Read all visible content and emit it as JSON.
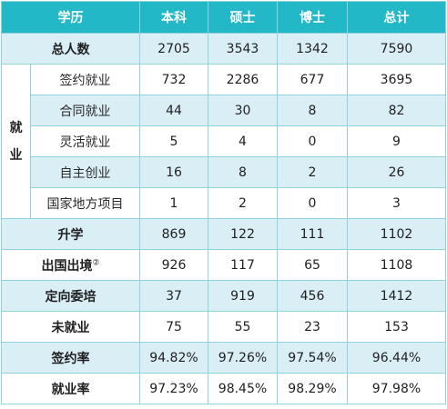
{
  "table": {
    "headers": [
      "学历",
      "本科",
      "硕士",
      "博士",
      "总计"
    ],
    "total_row": {
      "label": "总人数",
      "values": [
        "2705",
        "3543",
        "1342",
        "7590"
      ]
    },
    "employment_group_label": [
      "就",
      "业"
    ],
    "employment_rows": [
      {
        "label": "签约就业",
        "values": [
          "732",
          "2286",
          "677",
          "3695"
        ]
      },
      {
        "label": "合同就业",
        "values": [
          "44",
          "30",
          "8",
          "82"
        ]
      },
      {
        "label": "灵活就业",
        "values": [
          "5",
          "4",
          "0",
          "9"
        ]
      },
      {
        "label": "自主创业",
        "values": [
          "16",
          "8",
          "2",
          "26"
        ]
      },
      {
        "label": "国家地方项目",
        "values": [
          "1",
          "2",
          "0",
          "3"
        ]
      }
    ],
    "other_rows": [
      {
        "label": "升学",
        "values": [
          "869",
          "122",
          "111",
          "1102"
        ]
      },
      {
        "label": "出国出境",
        "note": "②",
        "values": [
          "926",
          "117",
          "65",
          "1108"
        ]
      },
      {
        "label": "定向委培",
        "values": [
          "37",
          "919",
          "456",
          "1412"
        ]
      },
      {
        "label": "未就业",
        "values": [
          "75",
          "55",
          "23",
          "153"
        ]
      },
      {
        "label": "签约率",
        "values": [
          "94.82%",
          "97.26%",
          "97.54%",
          "96.44%"
        ]
      },
      {
        "label": "就业率",
        "values": [
          "97.23%",
          "98.45%",
          "98.29%",
          "97.98%"
        ]
      }
    ]
  },
  "colors": {
    "header_bg": "#22b8c8",
    "shade_bg": "#daeef6",
    "border": "#8fd3df"
  }
}
